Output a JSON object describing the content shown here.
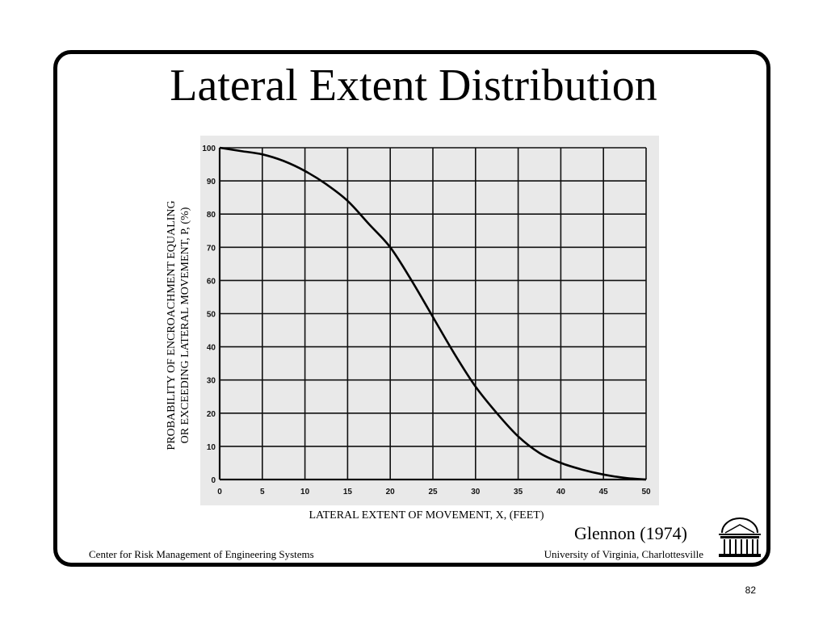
{
  "slide": {
    "title": "Lateral Extent Distribution",
    "credit": "Glennon (1974)",
    "footer_left": "Center for Risk Management of Engineering Systems",
    "footer_right": "University of Virginia, Charlottesville",
    "page_number": "82",
    "logo_icon": "rotunda-icon"
  },
  "chart_data": {
    "type": "line",
    "title": "",
    "xlabel": "LATERAL EXTENT OF MOVEMENT, X, (FEET)",
    "ylabel_lines": [
      "PROBABILITY OF ENCROACHMENT EQUALING",
      "OR EXCEEDING LATERAL MOVEMENT, P, (%)"
    ],
    "xlim": [
      0,
      50
    ],
    "ylim": [
      0,
      100
    ],
    "x_ticks": [
      0,
      5,
      10,
      15,
      20,
      25,
      30,
      35,
      40,
      45,
      50
    ],
    "y_ticks": [
      0,
      10,
      20,
      30,
      40,
      50,
      60,
      70,
      80,
      90,
      100
    ],
    "grid": true,
    "series": [
      {
        "x": [
          0,
          2.5,
          5,
          7.5,
          10,
          12.5,
          15,
          17.5,
          20,
          22.5,
          25,
          27.5,
          30,
          32.5,
          35,
          37.5,
          40,
          42.5,
          45,
          47.5,
          50
        ],
        "values": [
          100,
          99,
          98,
          96,
          93,
          89,
          84,
          77,
          70,
          60,
          49,
          38,
          28,
          20,
          13,
          8,
          5,
          3,
          1.5,
          0.5,
          0
        ]
      }
    ]
  }
}
